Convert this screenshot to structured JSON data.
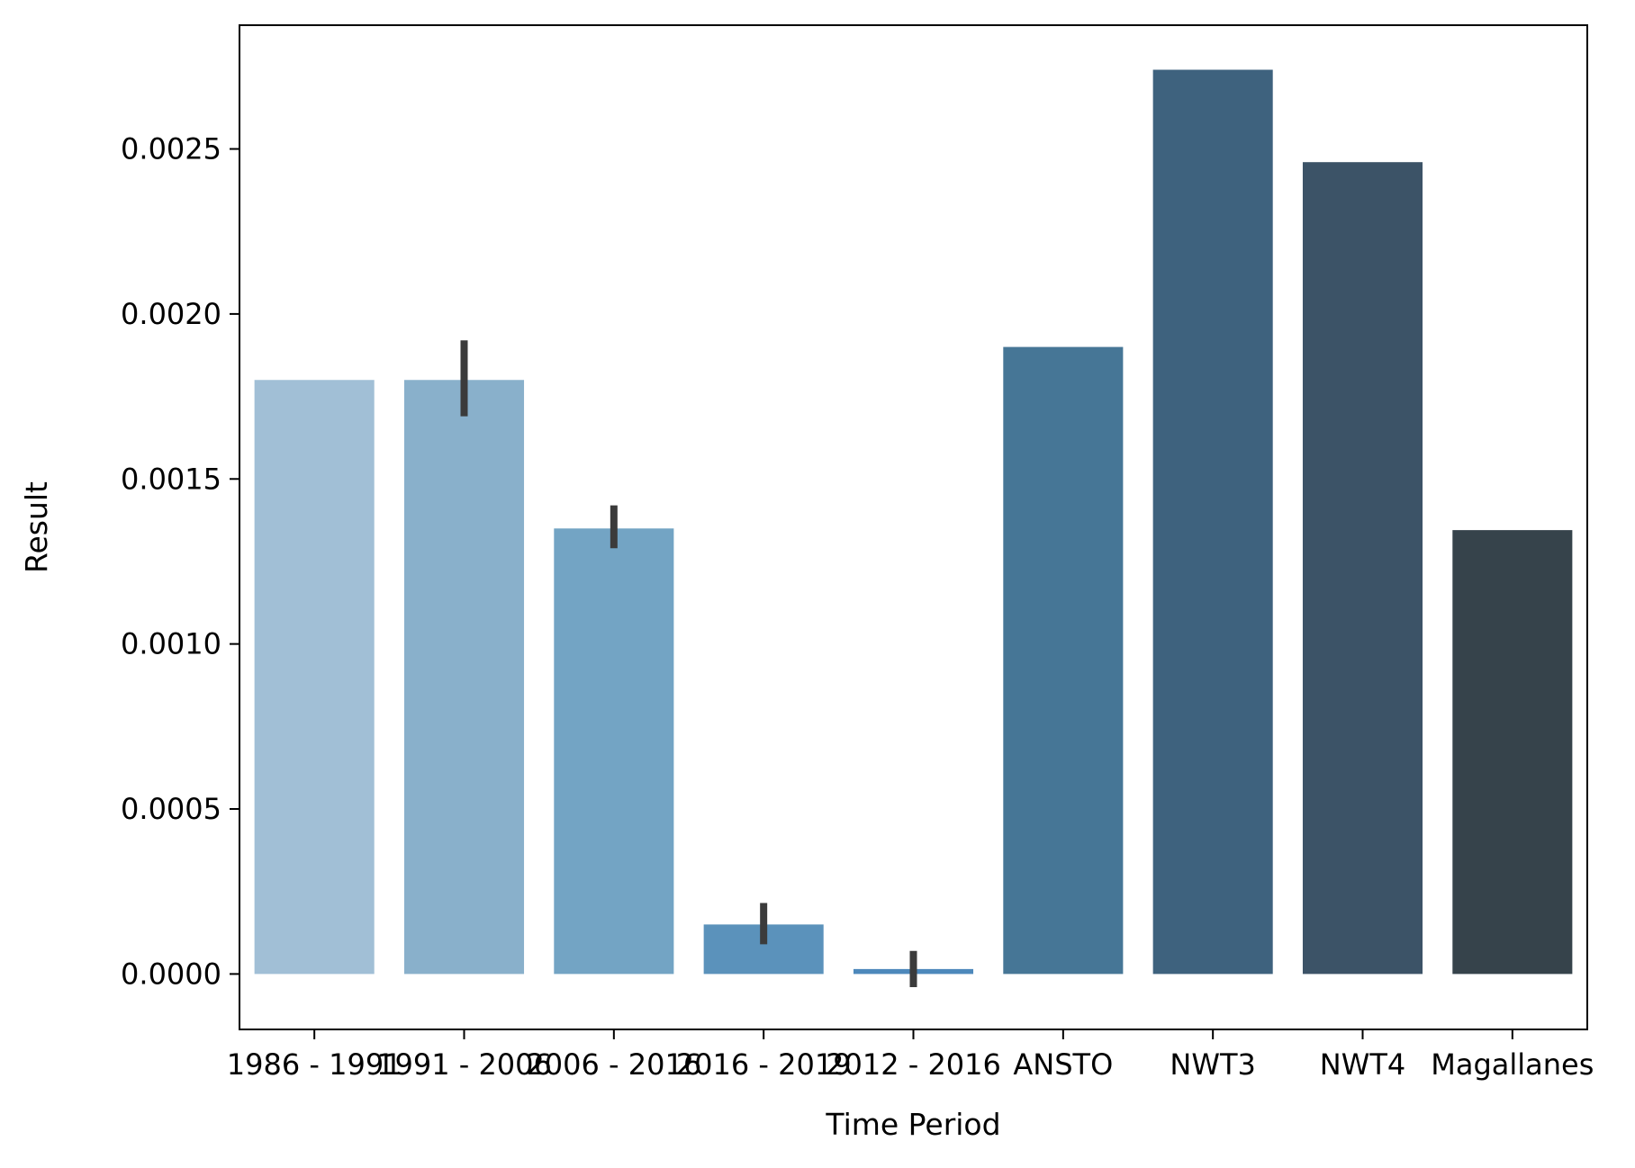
{
  "chart_data": {
    "type": "bar",
    "title": "",
    "xlabel": "Time Period",
    "ylabel": "Result",
    "ylim": [
      -0.000168,
      0.002875
    ],
    "yticks": [
      0.0,
      0.0005,
      0.001,
      0.0015,
      0.002,
      0.0025
    ],
    "ytick_labels": [
      "0.0000",
      "0.0005",
      "0.0010",
      "0.0015",
      "0.0020",
      "0.0025"
    ],
    "grid": false,
    "legend": "none",
    "categories": [
      "1986 - 1991",
      "1991 - 2006",
      "2006 - 2016",
      "2016 - 2019",
      "2012 - 2016",
      "ANSTO",
      "NWT3",
      "NWT4",
      "Magallanes"
    ],
    "values": [
      0.0018,
      0.0018,
      0.00135,
      0.00015,
      1.5e-05,
      0.0019,
      0.00274,
      0.00246,
      0.001345
    ],
    "error_bars": [
      null,
      [
        0.00169,
        0.00192
      ],
      [
        0.00129,
        0.00142
      ],
      [
        9e-05,
        0.000215
      ],
      [
        -4e-05,
        7e-05
      ],
      null,
      null,
      null,
      null
    ],
    "colors": [
      "#a1bfd6",
      "#89b0cb",
      "#73a4c4",
      "#5b92bb",
      "#4d88bb",
      "#467696",
      "#3e627e",
      "#3c5367",
      "#36434b"
    ],
    "error_color": "#3b3b3b"
  }
}
